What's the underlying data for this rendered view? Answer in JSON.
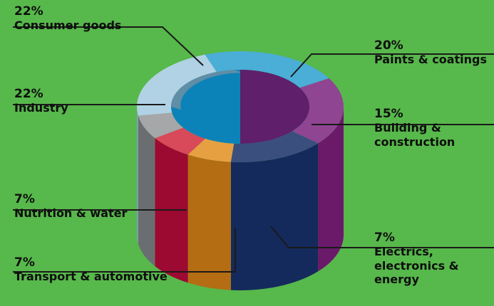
{
  "chart_data": {
    "type": "pie",
    "title": "",
    "unit": "%",
    "segments": [
      {
        "label": "Consumer goods",
        "value": 22,
        "display": "22%",
        "color_top": "#4aaed6",
        "color_side": "#3a8fb3"
      },
      {
        "label": "Paints & coatings",
        "value": 20,
        "display": "20%",
        "color_top": "#8f4592",
        "color_side": "#6b1a6a"
      },
      {
        "label": "Building & construction",
        "value": 15,
        "display": "15%",
        "color_top": "#3a4f7e",
        "color_side": "#142a5c"
      },
      {
        "label": "Electrics, electronics & energy",
        "value": 7,
        "display": "7%",
        "color_top": "#e6a042",
        "color_side": "#b46d13"
      },
      {
        "label": "Transport & automotive",
        "value": 7,
        "display": "7%",
        "color_top": "#d8495a",
        "color_side": "#9c0a31"
      },
      {
        "label": "Nutrition & water",
        "value": 7,
        "display": "7%",
        "color_top": "#a5a7a9",
        "color_side": "#6b6e71"
      },
      {
        "label": "Industry",
        "value": 22,
        "display": "22%",
        "color_top": "#b1d2e5",
        "color_side": "#7fa1b6"
      }
    ],
    "labels": {
      "consumer": {
        "pct": "22%",
        "name": "Consumer goods"
      },
      "paints": {
        "pct": "20%",
        "name": "Paints & coatings"
      },
      "building": {
        "pct": "15%",
        "line1": "Building &",
        "line2": "construction"
      },
      "electrics": {
        "pct": "7%",
        "line1": "Electrics,",
        "line2": "electronics &",
        "line3": "energy"
      },
      "transport": {
        "pct": "7%",
        "name": "Transport & automotive"
      },
      "nutrition": {
        "pct": "7%",
        "name": "Nutrition & water"
      },
      "industry": {
        "pct": "22%",
        "name": "Industry"
      }
    },
    "colors": {
      "background": "#57b84b",
      "hole_top": "#0c83b8",
      "hole_left": "#5f8ea6",
      "hole_right": "#5f1f6a",
      "leader": "#1a1a1a"
    }
  }
}
